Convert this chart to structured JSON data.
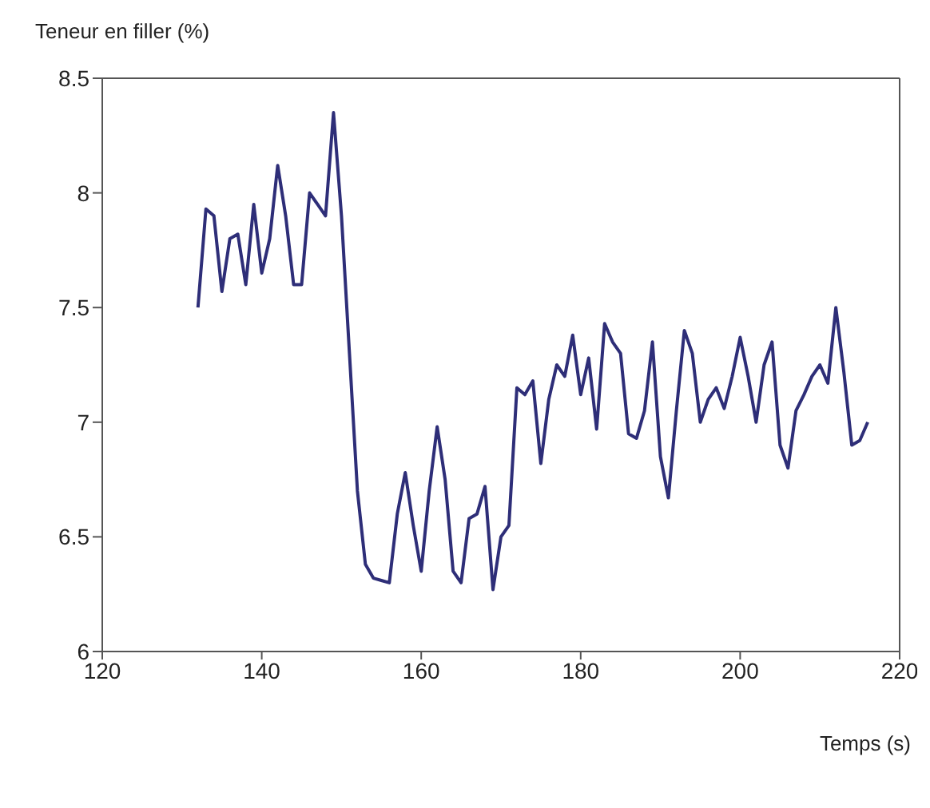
{
  "chart_data": {
    "type": "line",
    "xlabel": "Temps (s)",
    "ylabel": "Teneur en filler (%)",
    "x": [
      132,
      133,
      134,
      135,
      136,
      137,
      138,
      139,
      140,
      141,
      142,
      143,
      144,
      145,
      146,
      147,
      148,
      149,
      150,
      151,
      152,
      153,
      154,
      155,
      156,
      157,
      158,
      159,
      160,
      161,
      162,
      163,
      164,
      165,
      166,
      167,
      168,
      169,
      170,
      171,
      172,
      173,
      174,
      175,
      176,
      177,
      178,
      179,
      180,
      181,
      182,
      183,
      184,
      185,
      186,
      187,
      188,
      189,
      190,
      191,
      192,
      193,
      194,
      195,
      196,
      197,
      198,
      199,
      200,
      201,
      202,
      203,
      204,
      205,
      206,
      207,
      208,
      209,
      210,
      211,
      212,
      213,
      214,
      215,
      216
    ],
    "series": [
      {
        "color": "#2e2e78",
        "values": [
          7.5,
          7.93,
          7.9,
          7.57,
          7.8,
          7.82,
          7.6,
          7.95,
          7.65,
          7.8,
          8.12,
          7.9,
          7.6,
          7.6,
          8.0,
          7.95,
          7.9,
          8.35,
          7.9,
          7.3,
          6.7,
          6.38,
          6.32,
          6.31,
          6.3,
          6.6,
          6.78,
          6.55,
          6.35,
          6.7,
          6.98,
          6.75,
          6.35,
          6.3,
          6.58,
          6.6,
          6.72,
          6.27,
          6.5,
          6.55,
          7.15,
          7.12,
          7.18,
          6.82,
          7.1,
          7.25,
          7.2,
          7.38,
          7.12,
          7.28,
          6.97,
          7.43,
          7.35,
          7.3,
          6.95,
          6.93,
          7.05,
          7.35,
          6.85,
          6.67,
          7.05,
          7.4,
          7.3,
          7.0,
          7.1,
          7.15,
          7.06,
          7.2,
          7.37,
          7.2,
          7.0,
          7.25,
          7.35,
          6.9,
          6.8,
          7.05,
          7.12,
          7.2,
          7.25,
          7.17,
          7.5,
          7.22,
          6.9,
          6.92,
          7.0
        ]
      }
    ],
    "xlim": [
      120,
      220
    ],
    "xticks": [
      120,
      140,
      160,
      180,
      200,
      220
    ],
    "ylim": [
      6,
      8.5
    ],
    "yticks": [
      6,
      6.5,
      7,
      7.5,
      8,
      8.5
    ],
    "grid": false,
    "legend": false,
    "marker": "none",
    "line_style": "solid"
  }
}
